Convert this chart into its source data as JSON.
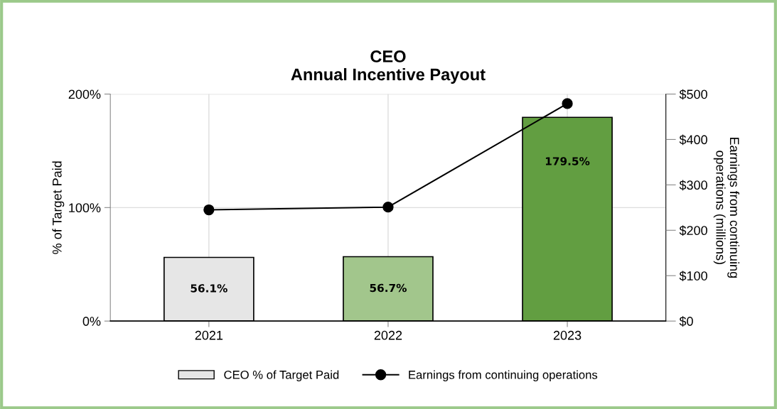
{
  "chart_data": {
    "type": "bar",
    "title": "CEO\nAnnual Incentive Payout",
    "ylabel": "% of Target Paid",
    "y2label": "Earnings from continuing\noperations (millions)",
    "categories": [
      "2021",
      "2022",
      "2023"
    ],
    "series": [
      {
        "name": "CEO % of Target Paid",
        "colors": [
          "#e6e6e6",
          "#a2c68c",
          "#629e41"
        ],
        "color": "#e6e6e6",
        "values": [
          56.1,
          56.7,
          179.5
        ],
        "value_labels": [
          "56.1%",
          "56.7%",
          "179.5%"
        ]
      },
      {
        "name": "Earnings from continuing operations",
        "type": "line",
        "axis": "y2",
        "color": "#000000",
        "marker": "circle",
        "values": [
          245,
          251,
          479
        ]
      }
    ],
    "ylim": [
      0,
      200
    ],
    "yticks": [
      {
        "value": 0,
        "label": "0%"
      },
      {
        "value": 100,
        "label": "100%"
      },
      {
        "value": 200,
        "label": "200%"
      }
    ],
    "y2lim": [
      0,
      500
    ],
    "y2ticks": [
      {
        "value": 0,
        "label": "$0"
      },
      {
        "value": 100,
        "label": "$100"
      },
      {
        "value": 200,
        "label": "$200"
      },
      {
        "value": 300,
        "label": "$300"
      },
      {
        "value": 400,
        "label": "$400"
      },
      {
        "value": 500,
        "label": "$500"
      }
    ],
    "grid": true,
    "legend": "bottom"
  }
}
